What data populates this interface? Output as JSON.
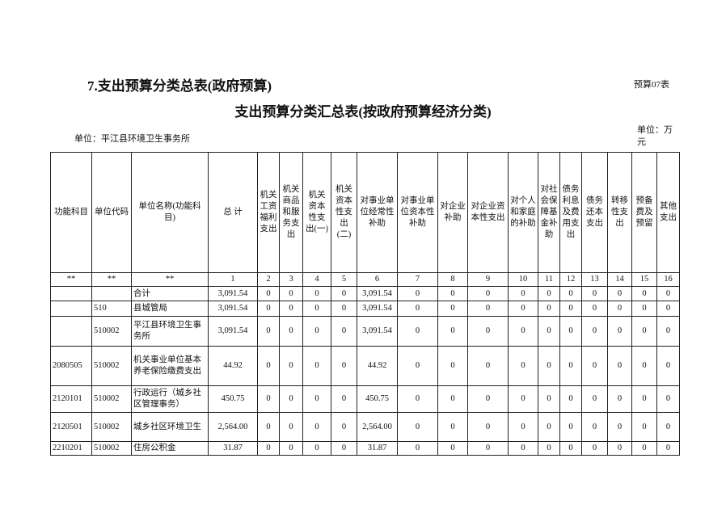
{
  "header": {
    "title": "7.支出预算分类总表(政府预算)",
    "table_no": "预算07表",
    "subtitle": "支出预算分类汇总表(按政府预算经济分类)",
    "unit_org": "单位：平江县环境卫生事务所",
    "unit": "单位：万元"
  },
  "table": {
    "columns": [
      "功能科目",
      "单位代码",
      "单位名称(功能科目)",
      "总 计",
      "机关工资福利支出",
      "机关商品和服务支出",
      "机关资本性支出(一)",
      "机关资本性支出(二)",
      "对事业单位经常性补助",
      "对事业单位资本性补助",
      "对企业补助",
      "对企业资本性支出",
      "对个人和家庭的补助",
      "对社会保障基金补助",
      "债务利息及费用支出",
      "债务还本支出",
      "转移性支出",
      "预备费及预留",
      "其他支出"
    ],
    "index_row": [
      "**",
      "**",
      "**",
      "1",
      "2",
      "3",
      "4",
      "5",
      "6",
      "7",
      "8",
      "9",
      "10",
      "11",
      "12",
      "13",
      "14",
      "15",
      "16"
    ],
    "rows": [
      [
        null,
        null,
        "合计",
        "3,091.54",
        "0",
        "0",
        "0",
        "0",
        "3,091.54",
        "0",
        "0",
        "0",
        "0",
        "0",
        "0",
        "0",
        "0",
        "0",
        "0"
      ],
      [
        null,
        "510",
        "县城管局",
        "3,091.54",
        "0",
        "0",
        "0",
        "0",
        "3,091.54",
        "0",
        "0",
        "0",
        "0",
        "0",
        "0",
        "0",
        "0",
        "0",
        "0"
      ],
      [
        null,
        "510002",
        "平江县环境卫生事务所",
        "3,091.54",
        "0",
        "0",
        "0",
        "0",
        "3,091.54",
        "0",
        "0",
        "0",
        "0",
        "0",
        "0",
        "0",
        "0",
        "0",
        "0"
      ],
      [
        "2080505",
        "510002",
        "机关事业单位基本养老保险缴费支出",
        "44.92",
        "0",
        "0",
        "0",
        "0",
        "44.92",
        "0",
        "0",
        "0",
        "0",
        "0",
        "0",
        "0",
        "0",
        "0",
        "0"
      ],
      [
        "2120101",
        "510002",
        "行政运行（城乡社区管理事务）",
        "450.75",
        "0",
        "0",
        "0",
        "0",
        "450.75",
        "0",
        "0",
        "0",
        "0",
        "0",
        "0",
        "0",
        "0",
        "0",
        "0"
      ],
      [
        "2120501",
        "510002",
        "城乡社区环境卫生",
        "2,564.00",
        "0",
        "0",
        "0",
        "0",
        "2,564.00",
        "0",
        "0",
        "0",
        "0",
        "0",
        "0",
        "0",
        "0",
        "0",
        "0"
      ],
      [
        "2210201",
        "510002",
        "住房公积金",
        "31.87",
        "0",
        "0",
        "0",
        "0",
        "31.87",
        "0",
        "0",
        "0",
        "0",
        "0",
        "0",
        "0",
        "0",
        "0",
        "0"
      ]
    ]
  }
}
